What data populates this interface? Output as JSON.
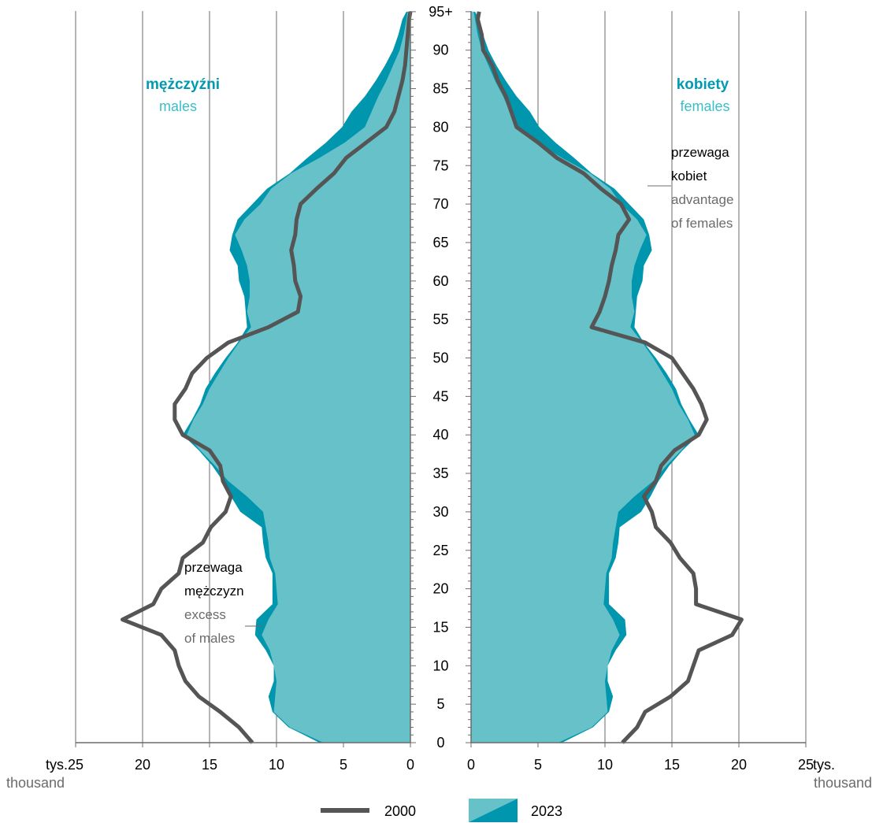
{
  "colors": {
    "fill_2023": "#66c1c9",
    "accent_dark": "#0096ad",
    "line_2000": "#555555",
    "grid": "#6b6b6b",
    "text": "#000000",
    "text_gray": "#6b6b6b",
    "title_teal": "#009bb0",
    "subtitle_teal": "#3cbec8"
  },
  "chart_data": {
    "type": "population-pyramid",
    "title_left": "mężczyźni",
    "subtitle_left": "males",
    "title_right": "kobiety",
    "subtitle_right": "females",
    "age_ticks": [
      "0",
      "5",
      "10",
      "15",
      "20",
      "25",
      "30",
      "35",
      "40",
      "45",
      "50",
      "55",
      "60",
      "65",
      "70",
      "75",
      "80",
      "85",
      "90",
      "95+"
    ],
    "x_ticks_left": [
      "25",
      "20",
      "15",
      "10",
      "5",
      "0"
    ],
    "x_ticks_right": [
      "0",
      "5",
      "10",
      "15",
      "20",
      "25"
    ],
    "x_unit_pl": "tys.",
    "x_unit_en": "thousand",
    "xlim": [
      0,
      25
    ],
    "ages": [
      0,
      2,
      4,
      6,
      8,
      10,
      12,
      14,
      16,
      18,
      20,
      22,
      24,
      26,
      28,
      30,
      32,
      34,
      36,
      38,
      40,
      42,
      44,
      46,
      48,
      50,
      52,
      54,
      56,
      58,
      60,
      62,
      64,
      66,
      68,
      70,
      72,
      74,
      76,
      78,
      80,
      82,
      84,
      86,
      88,
      90,
      92,
      94,
      95
    ],
    "series": [
      {
        "name": "2000",
        "type": "line",
        "males": [
          11.8,
          12.8,
          14.2,
          15.8,
          16.8,
          17.3,
          17.6,
          18.6,
          21.5,
          19.2,
          18.6,
          17.3,
          17.0,
          15.5,
          14.9,
          13.8,
          13.4,
          14.0,
          14.2,
          15.0,
          17.0,
          17.6,
          17.6,
          16.8,
          16.3,
          15.2,
          13.6,
          10.6,
          8.4,
          8.2,
          8.6,
          8.7,
          8.9,
          8.6,
          8.5,
          8.2,
          7.0,
          5.7,
          4.8,
          3.3,
          1.8,
          1.2,
          0.9,
          0.6,
          0.4,
          0.3,
          0.2,
          0.1,
          0.0
        ],
        "females": [
          11.3,
          12.4,
          13.0,
          14.9,
          16.2,
          16.6,
          17.0,
          19.5,
          20.2,
          16.8,
          16.8,
          16.6,
          15.6,
          14.9,
          13.8,
          13.5,
          12.9,
          13.8,
          14.2,
          15.2,
          17.0,
          17.6,
          17.2,
          16.6,
          15.8,
          15.0,
          13.0,
          9.0,
          9.6,
          10.0,
          10.3,
          10.5,
          10.8,
          11.0,
          11.8,
          11.2,
          9.7,
          8.4,
          6.4,
          5.0,
          3.4,
          3.0,
          2.6,
          2.0,
          1.6,
          0.9,
          0.8,
          0.5,
          0.6
        ]
      },
      {
        "name": "2023",
        "type": "area",
        "males": [
          6.5,
          9.0,
          10.3,
          10.6,
          10.2,
          10.2,
          10.8,
          11.6,
          11.5,
          10.3,
          10.0,
          10.1,
          10.8,
          11.0,
          11.1,
          12.7,
          13.4,
          14.0,
          14.8,
          15.7,
          17.0,
          16.3,
          15.7,
          15.3,
          14.6,
          13.8,
          12.9,
          12.2,
          12.2,
          12.0,
          12.0,
          12.2,
          12.6,
          13.1,
          12.4,
          11.2,
          10.4,
          9.0,
          7.7,
          6.3,
          5.1,
          4.4,
          3.4,
          2.6,
          1.9,
          1.3,
          0.9,
          0.6,
          0.3
        ],
        "females": [
          6.8,
          9.1,
          10.2,
          10.1,
          10.0,
          10.2,
          10.5,
          11.1,
          10.6,
          9.9,
          10.3,
          10.3,
          10.5,
          10.6,
          10.8,
          11.0,
          12.2,
          13.6,
          14.6,
          15.8,
          16.7,
          16.2,
          15.5,
          15.0,
          14.3,
          13.6,
          12.8,
          11.9,
          12.3,
          12.4,
          12.8,
          12.9,
          13.5,
          13.3,
          12.9,
          11.8,
          10.7,
          8.9,
          6.8,
          4.9,
          3.4,
          2.9,
          2.4,
          1.8,
          1.3,
          0.8,
          0.5,
          0.3,
          0.2
        ]
      }
    ],
    "annotations": [
      {
        "side": "left",
        "title_line1": "przewaga",
        "title_line2": "mężczyzn",
        "sub_line1": "excess",
        "sub_line2": "of males"
      },
      {
        "side": "right",
        "title_line1": "przewaga",
        "title_line2": "kobiet",
        "sub_line1": "advantage",
        "sub_line2": "of females"
      }
    ],
    "legend": [
      "2000",
      "2023"
    ],
    "grid": true
  }
}
